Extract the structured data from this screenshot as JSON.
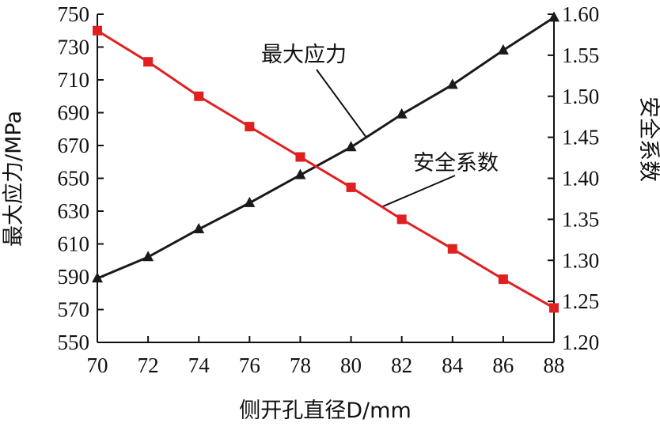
{
  "chart_data": {
    "type": "line",
    "xlabel": "侧开孔直径D/mm",
    "ylabel_left": "最大应力/MPa",
    "ylabel_right": "安全系数",
    "x": [
      70,
      72,
      74,
      76,
      78,
      80,
      82,
      84,
      86,
      88
    ],
    "x_ticks": [
      "70",
      "72",
      "74",
      "76",
      "78",
      "80",
      "82",
      "84",
      "86",
      "88"
    ],
    "y_left_ticks": [
      "550",
      "570",
      "590",
      "610",
      "630",
      "650",
      "670",
      "690",
      "710",
      "730",
      "750"
    ],
    "y_right_ticks": [
      "1.20",
      "1.25",
      "1.30",
      "1.35",
      "1.40",
      "1.45",
      "1.50",
      "1.55",
      "1.60"
    ],
    "xlim": [
      70,
      88
    ],
    "ylim_left": [
      550,
      750
    ],
    "ylim_right": [
      1.2,
      1.6
    ],
    "grid": false,
    "series": [
      {
        "name": "最大应力",
        "axis": "left",
        "marker": "triangle",
        "color": "#1a1a1a",
        "values": [
          589,
          602,
          619,
          635,
          652,
          669,
          689,
          707,
          728,
          748
        ]
      },
      {
        "name": "安全系数",
        "axis": "right",
        "marker": "square",
        "color": "#e02020",
        "values": [
          1.58,
          1.542,
          1.5,
          1.463,
          1.426,
          1.389,
          1.35,
          1.314,
          1.277,
          1.242
        ]
      }
    ]
  }
}
